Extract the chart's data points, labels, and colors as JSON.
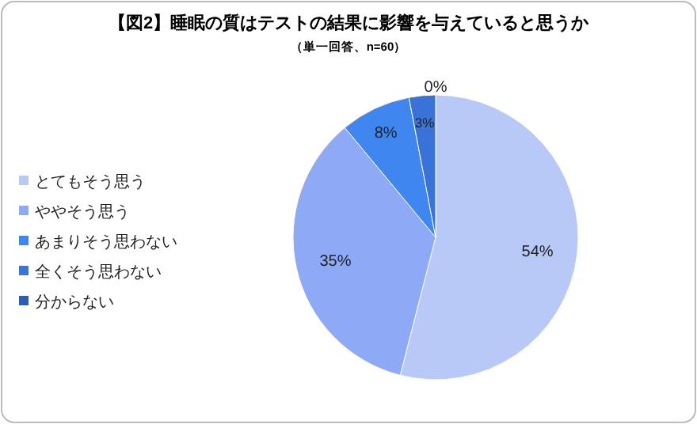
{
  "chart_data": {
    "type": "pie",
    "title": "【図2】睡眠の質はテストの結果に影響を与えていると思うか",
    "subtitle": "（単一回答、n=60）",
    "categories": [
      "とてもそう思う",
      "ややそう思う",
      "あまりそう思わない",
      "全くそう思わない",
      "分からない"
    ],
    "values": [
      54,
      35,
      8,
      3,
      0
    ],
    "value_labels": [
      "54%",
      "35%",
      "8%",
      "3%",
      "0%"
    ],
    "colors": [
      "#b8c9f8",
      "#8eaaf6",
      "#3f86f0",
      "#3a73d8",
      "#2c5bb8"
    ],
    "legend": "left"
  }
}
